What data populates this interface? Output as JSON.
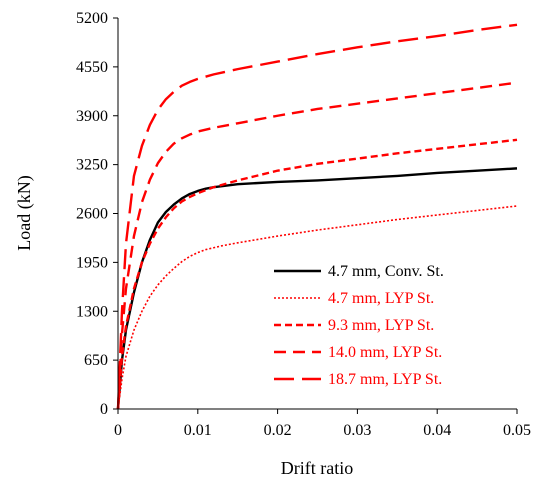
{
  "chart_data": {
    "type": "line",
    "title": "",
    "xlabel": "Drift ratio",
    "ylabel": "Load (kN)",
    "xlim": [
      0,
      0.05
    ],
    "ylim": [
      0,
      5200
    ],
    "x_ticks": [
      0,
      0.01,
      0.02,
      0.03,
      0.04,
      0.05
    ],
    "x_tick_labels": [
      "0",
      "0.01",
      "0.02",
      "0.03",
      "0.04",
      "0.05"
    ],
    "y_ticks": [
      0,
      650,
      1300,
      1950,
      2600,
      3250,
      3900,
      4550,
      5200
    ],
    "y_tick_labels": [
      "0",
      "650",
      "1300",
      "1950",
      "2600",
      "3250",
      "3900",
      "4550",
      "5200"
    ],
    "grid": false,
    "legend_position": "bottom-right",
    "series": [
      {
        "name": "4.7 mm, Conv. St.",
        "color": "#000000",
        "dash": "solid",
        "points": [
          [
            0,
            0
          ],
          [
            0.0005,
            650
          ],
          [
            0.001,
            1050
          ],
          [
            0.002,
            1550
          ],
          [
            0.003,
            1950
          ],
          [
            0.004,
            2250
          ],
          [
            0.005,
            2480
          ],
          [
            0.006,
            2620
          ],
          [
            0.007,
            2720
          ],
          [
            0.008,
            2800
          ],
          [
            0.009,
            2860
          ],
          [
            0.01,
            2900
          ],
          [
            0.011,
            2930
          ],
          [
            0.012,
            2950
          ],
          [
            0.015,
            2990
          ],
          [
            0.02,
            3020
          ],
          [
            0.025,
            3040
          ],
          [
            0.03,
            3070
          ],
          [
            0.035,
            3100
          ],
          [
            0.04,
            3140
          ],
          [
            0.045,
            3170
          ],
          [
            0.05,
            3200
          ]
        ]
      },
      {
        "name": "4.7 mm, LYP St.",
        "color": "#ff0000",
        "dash": "dotted",
        "points": [
          [
            0,
            0
          ],
          [
            0.0005,
            400
          ],
          [
            0.001,
            700
          ],
          [
            0.002,
            1050
          ],
          [
            0.003,
            1300
          ],
          [
            0.004,
            1500
          ],
          [
            0.005,
            1650
          ],
          [
            0.006,
            1770
          ],
          [
            0.007,
            1870
          ],
          [
            0.008,
            1960
          ],
          [
            0.009,
            2030
          ],
          [
            0.01,
            2080
          ],
          [
            0.011,
            2120
          ],
          [
            0.013,
            2170
          ],
          [
            0.015,
            2210
          ],
          [
            0.02,
            2300
          ],
          [
            0.025,
            2380
          ],
          [
            0.03,
            2450
          ],
          [
            0.035,
            2520
          ],
          [
            0.04,
            2580
          ],
          [
            0.045,
            2640
          ],
          [
            0.05,
            2700
          ]
        ]
      },
      {
        "name": "9.3 mm, LYP St.",
        "color": "#ff0000",
        "dash": "short-dash",
        "points": [
          [
            0,
            0
          ],
          [
            0.0005,
            700
          ],
          [
            0.001,
            1100
          ],
          [
            0.002,
            1600
          ],
          [
            0.003,
            1950
          ],
          [
            0.004,
            2200
          ],
          [
            0.005,
            2400
          ],
          [
            0.006,
            2550
          ],
          [
            0.007,
            2670
          ],
          [
            0.008,
            2760
          ],
          [
            0.009,
            2820
          ],
          [
            0.01,
            2870
          ],
          [
            0.011,
            2910
          ],
          [
            0.012,
            2950
          ],
          [
            0.015,
            3040
          ],
          [
            0.02,
            3170
          ],
          [
            0.025,
            3260
          ],
          [
            0.03,
            3330
          ],
          [
            0.035,
            3400
          ],
          [
            0.04,
            3460
          ],
          [
            0.045,
            3520
          ],
          [
            0.05,
            3580
          ]
        ]
      },
      {
        "name": "14.0 mm, LYP St.",
        "color": "#ff0000",
        "dash": "medium-dash",
        "points": [
          [
            0,
            0
          ],
          [
            0.0005,
            1000
          ],
          [
            0.001,
            1600
          ],
          [
            0.002,
            2300
          ],
          [
            0.003,
            2750
          ],
          [
            0.004,
            3050
          ],
          [
            0.005,
            3270
          ],
          [
            0.006,
            3420
          ],
          [
            0.007,
            3530
          ],
          [
            0.008,
            3600
          ],
          [
            0.009,
            3650
          ],
          [
            0.01,
            3690
          ],
          [
            0.012,
            3740
          ],
          [
            0.015,
            3800
          ],
          [
            0.02,
            3900
          ],
          [
            0.025,
            3990
          ],
          [
            0.03,
            4060
          ],
          [
            0.035,
            4130
          ],
          [
            0.04,
            4200
          ],
          [
            0.045,
            4270
          ],
          [
            0.05,
            4340
          ]
        ]
      },
      {
        "name": "18.7 mm, LYP St.",
        "color": "#ff0000",
        "dash": "long-dash",
        "points": [
          [
            0,
            0
          ],
          [
            0.0005,
            1300
          ],
          [
            0.001,
            2200
          ],
          [
            0.002,
            3100
          ],
          [
            0.003,
            3500
          ],
          [
            0.004,
            3780
          ],
          [
            0.005,
            3980
          ],
          [
            0.006,
            4120
          ],
          [
            0.007,
            4220
          ],
          [
            0.008,
            4300
          ],
          [
            0.009,
            4350
          ],
          [
            0.01,
            4390
          ],
          [
            0.012,
            4450
          ],
          [
            0.015,
            4520
          ],
          [
            0.02,
            4620
          ],
          [
            0.025,
            4720
          ],
          [
            0.03,
            4810
          ],
          [
            0.035,
            4890
          ],
          [
            0.04,
            4960
          ],
          [
            0.045,
            5040
          ],
          [
            0.05,
            5110
          ]
        ]
      }
    ]
  }
}
